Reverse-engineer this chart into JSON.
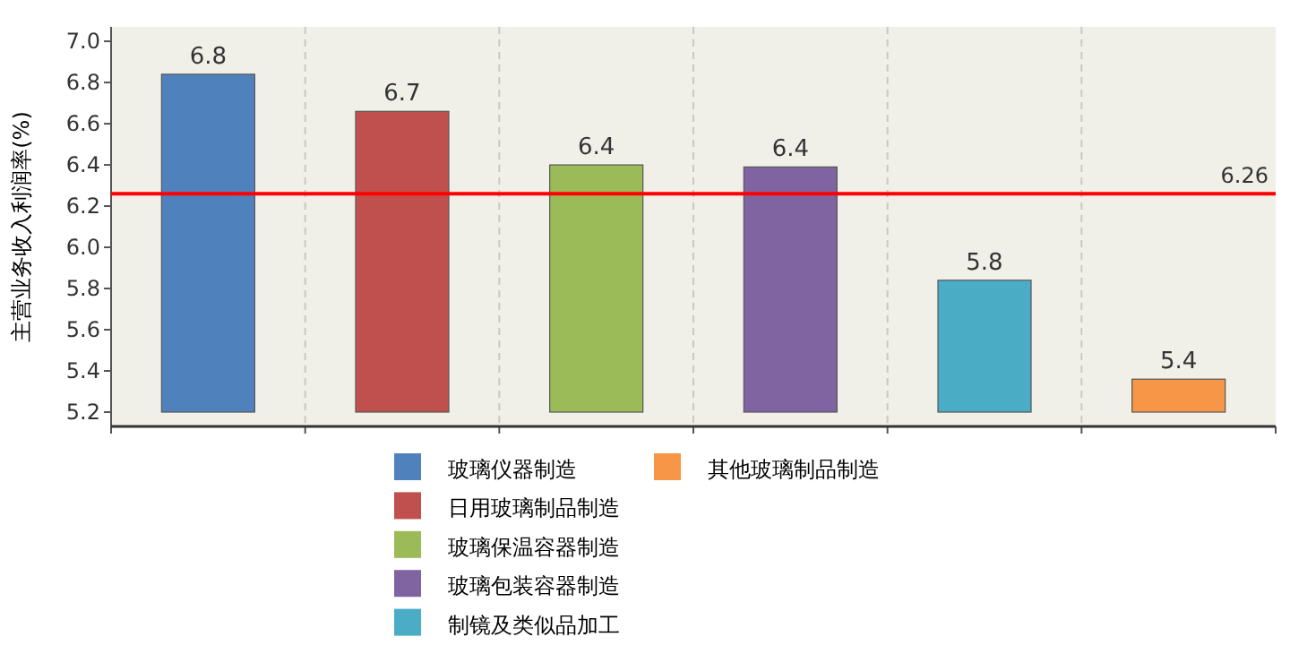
{
  "chart_data": {
    "type": "bar",
    "ylabel": "主营业务收入利润率(%)",
    "categories": [
      null,
      null,
      null,
      null,
      null,
      null
    ],
    "series": [
      {
        "name": "玻璃仪器制造",
        "color": "#4f81bd",
        "values": [
          6.84,
          null,
          null,
          null,
          null,
          null
        ],
        "value_labels": [
          "6.8",
          null,
          null,
          null,
          null,
          null
        ]
      },
      {
        "name": "日用玻璃制品制造",
        "color": "#c0504d",
        "values": [
          null,
          6.66,
          null,
          null,
          null,
          null
        ],
        "value_labels": [
          null,
          "6.7",
          null,
          null,
          null,
          null
        ]
      },
      {
        "name": "玻璃保温容器制造",
        "color": "#9bbb59",
        "values": [
          null,
          null,
          6.4,
          null,
          null,
          null
        ],
        "value_labels": [
          null,
          null,
          "6.4",
          null,
          null,
          null
        ]
      },
      {
        "name": "玻璃包装容器制造",
        "color": "#8064a2",
        "values": [
          null,
          null,
          null,
          6.39,
          null,
          null
        ],
        "value_labels": [
          null,
          null,
          null,
          "6.4",
          null,
          null
        ]
      },
      {
        "name": "制镜及类似品加工",
        "color": "#4bacc6",
        "values": [
          null,
          null,
          null,
          null,
          5.84,
          null
        ],
        "value_labels": [
          null,
          null,
          null,
          null,
          "5.8",
          null
        ]
      },
      {
        "name": "其他玻璃制品制造",
        "color": "#f79646",
        "values": [
          null,
          null,
          null,
          null,
          null,
          5.36
        ],
        "value_labels": [
          null,
          null,
          null,
          null,
          null,
          "5.4"
        ]
      }
    ],
    "ylim": [
      5.2,
      7.07
    ],
    "yticks": [
      5.2,
      5.4,
      5.6,
      5.8,
      {
        "value": 6,
        "label": "6.0"
      },
      6.2,
      6.4,
      6.6,
      6.8,
      {
        "value": 7,
        "label": "7.0"
      }
    ],
    "ref_lines": [
      {
        "axis": "y",
        "value": 6.26,
        "label": "6.26",
        "color": "#ff0000"
      }
    ],
    "grid": "x",
    "legend": "bottom"
  }
}
